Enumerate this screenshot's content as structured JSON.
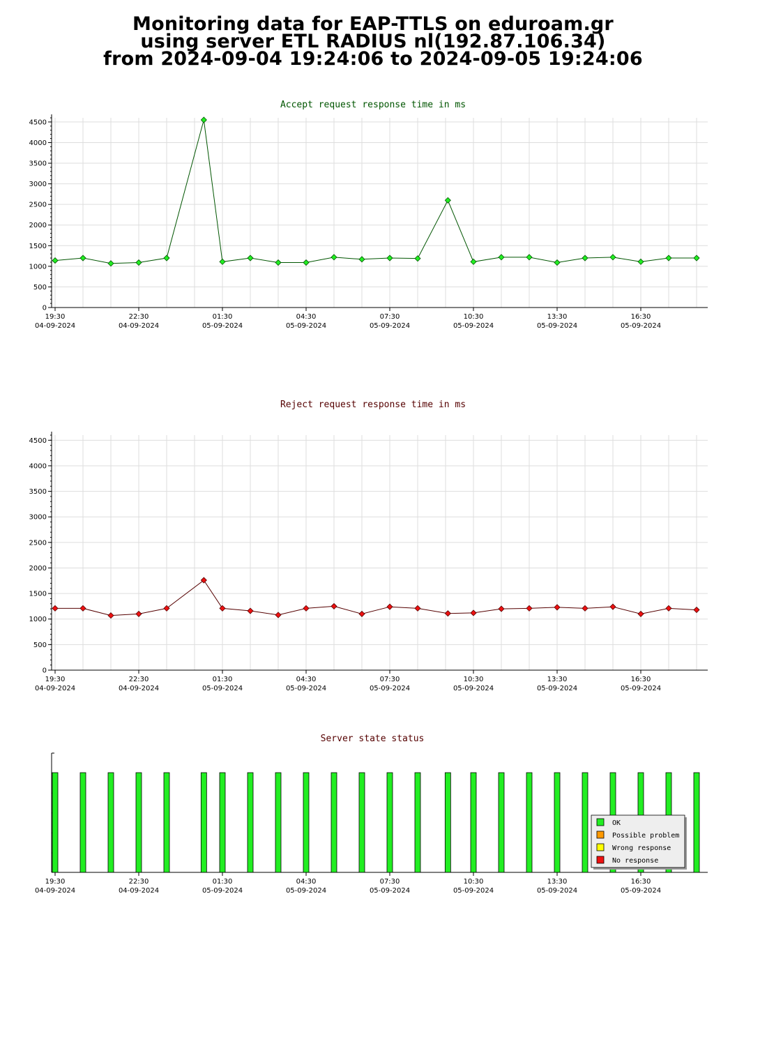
{
  "page": {
    "title_lines": [
      "Monitoring data for EAP-TTLS on eduroam.gr",
      "using server ETL RADIUS nl(192.87.106.34)",
      "from 2024-09-04 19:24:06 to 2024-09-05 19:24:06"
    ]
  },
  "chart_data": [
    {
      "type": "line",
      "title": "Accept request response time in ms",
      "title_color": "#005500",
      "marker_color": "#22ee22",
      "line_color": "#005500",
      "ylim": [
        0,
        4600
      ],
      "yticks": [
        0,
        500,
        1000,
        1500,
        2000,
        2500,
        3000,
        3500,
        4000,
        4500
      ],
      "xtick_labels": [
        [
          "19:30",
          "04-09-2024"
        ],
        [
          "22:30",
          "04-09-2024"
        ],
        [
          "01:30",
          "05-09-2024"
        ],
        [
          "04:30",
          "05-09-2024"
        ],
        [
          "07:30",
          "05-09-2024"
        ],
        [
          "10:30",
          "05-09-2024"
        ],
        [
          "13:30",
          "05-09-2024"
        ],
        [
          "16:30",
          "05-09-2024"
        ]
      ],
      "grid": true,
      "x": [
        "19:30",
        "20:30",
        "21:30",
        "22:30",
        "23:30",
        "00:50",
        "01:30",
        "02:30",
        "03:30",
        "04:30",
        "05:30",
        "06:30",
        "07:30",
        "08:30",
        "09:35",
        "10:30",
        "11:30",
        "12:30",
        "13:30",
        "14:30",
        "15:30",
        "16:30",
        "17:30",
        "18:30"
      ],
      "values": [
        1140,
        1200,
        1070,
        1090,
        1200,
        4550,
        1110,
        1200,
        1090,
        1090,
        1220,
        1170,
        1200,
        1190,
        2600,
        1110,
        1220,
        1220,
        1090,
        1200,
        1220,
        1110,
        1200,
        1200
      ]
    },
    {
      "type": "line",
      "title": "Reject request response time in ms",
      "title_color": "#550000",
      "marker_color": "#ee1111",
      "line_color": "#550000",
      "ylim": [
        0,
        4600
      ],
      "yticks": [
        0,
        500,
        1000,
        1500,
        2000,
        2500,
        3000,
        3500,
        4000,
        4500
      ],
      "xtick_labels": [
        [
          "19:30",
          "04-09-2024"
        ],
        [
          "22:30",
          "04-09-2024"
        ],
        [
          "01:30",
          "05-09-2024"
        ],
        [
          "04:30",
          "05-09-2024"
        ],
        [
          "07:30",
          "05-09-2024"
        ],
        [
          "10:30",
          "05-09-2024"
        ],
        [
          "13:30",
          "05-09-2024"
        ],
        [
          "16:30",
          "05-09-2024"
        ]
      ],
      "grid": true,
      "x": [
        "19:30",
        "20:30",
        "21:30",
        "22:30",
        "23:30",
        "00:50",
        "01:30",
        "02:30",
        "03:30",
        "04:30",
        "05:30",
        "06:30",
        "07:30",
        "08:30",
        "09:35",
        "10:30",
        "11:30",
        "12:30",
        "13:30",
        "14:30",
        "15:30",
        "16:30",
        "17:30",
        "18:30"
      ],
      "values": [
        1210,
        1210,
        1070,
        1100,
        1210,
        1760,
        1210,
        1160,
        1080,
        1210,
        1250,
        1100,
        1240,
        1210,
        1110,
        1120,
        1200,
        1210,
        1230,
        1210,
        1240,
        1100,
        1210,
        1180
      ]
    },
    {
      "type": "bar",
      "title": "Server state status",
      "title_color": "#550000",
      "xtick_labels": [
        [
          "19:30",
          "04-09-2024"
        ],
        [
          "22:30",
          "04-09-2024"
        ],
        [
          "01:30",
          "05-09-2024"
        ],
        [
          "04:30",
          "05-09-2024"
        ],
        [
          "07:30",
          "05-09-2024"
        ],
        [
          "10:30",
          "05-09-2024"
        ],
        [
          "13:30",
          "05-09-2024"
        ],
        [
          "16:30",
          "05-09-2024"
        ]
      ],
      "x": [
        "19:30",
        "20:30",
        "21:30",
        "22:30",
        "23:30",
        "00:50",
        "01:30",
        "02:30",
        "03:30",
        "04:30",
        "05:30",
        "06:30",
        "07:30",
        "08:30",
        "09:35",
        "10:30",
        "11:30",
        "12:30",
        "13:30",
        "14:30",
        "15:30",
        "16:30",
        "17:30",
        "18:30"
      ],
      "states": [
        "OK",
        "OK",
        "OK",
        "OK",
        "OK",
        "OK",
        "OK",
        "OK",
        "OK",
        "OK",
        "OK",
        "OK",
        "OK",
        "OK",
        "OK",
        "OK",
        "OK",
        "OK",
        "OK",
        "OK",
        "OK",
        "OK",
        "OK",
        "OK"
      ],
      "legend": [
        {
          "label": "OK",
          "color": "#22ee22"
        },
        {
          "label": "Possible problem",
          "color": "#ff9900"
        },
        {
          "label": "Wrong response",
          "color": "#ffff00"
        },
        {
          "label": "No response",
          "color": "#ee1111"
        }
      ],
      "legend_position": "bottom-right"
    }
  ]
}
